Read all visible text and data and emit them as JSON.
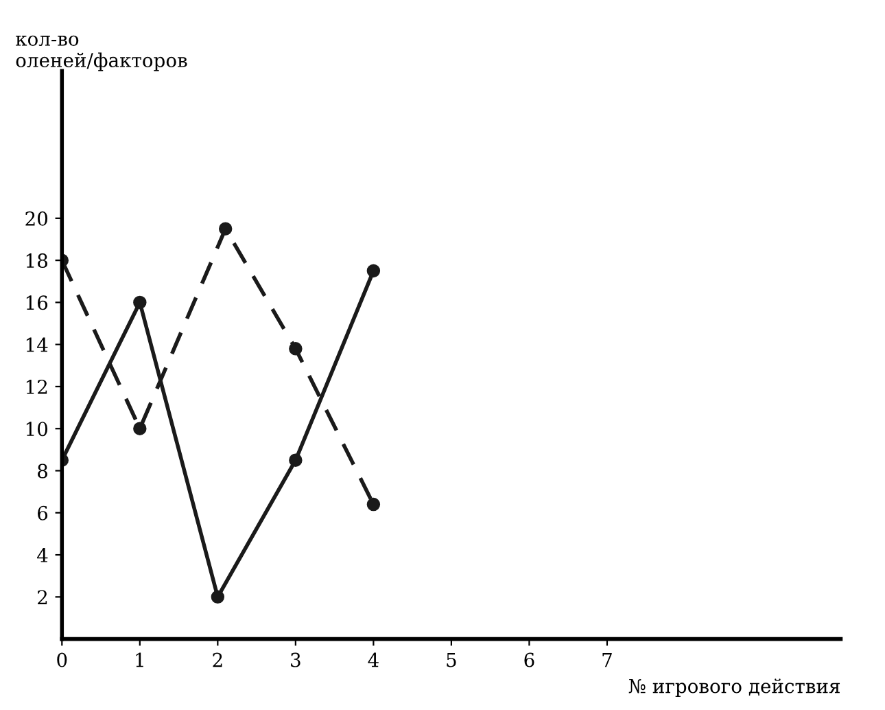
{
  "chart_data": {
    "type": "line",
    "xlabel": "№ игрового действия",
    "ylabel": "кол-во\nоленей/факторов",
    "series": [
      {
        "color": "#1a1a1a",
        "x": [
          0,
          1,
          2,
          3,
          4
        ],
        "values": [
          8.5,
          16,
          2,
          8.5,
          17.5
        ],
        "line_style": "solid"
      },
      {
        "color": "#1a1a1a",
        "x": [
          0,
          1,
          2.1,
          3,
          4
        ],
        "values": [
          18,
          10,
          19.5,
          13.8,
          6.4
        ],
        "line_style": "dashed"
      }
    ],
    "xlim": [
      0,
      10
    ],
    "ylim": [
      0,
      27
    ],
    "xticks": [
      0,
      1,
      2,
      3,
      4,
      5,
      6,
      7
    ],
    "yticks": [
      2,
      4,
      6,
      8,
      10,
      12,
      14,
      16,
      18,
      20
    ],
    "marker": "circle",
    "grid": false,
    "legend": false
  }
}
